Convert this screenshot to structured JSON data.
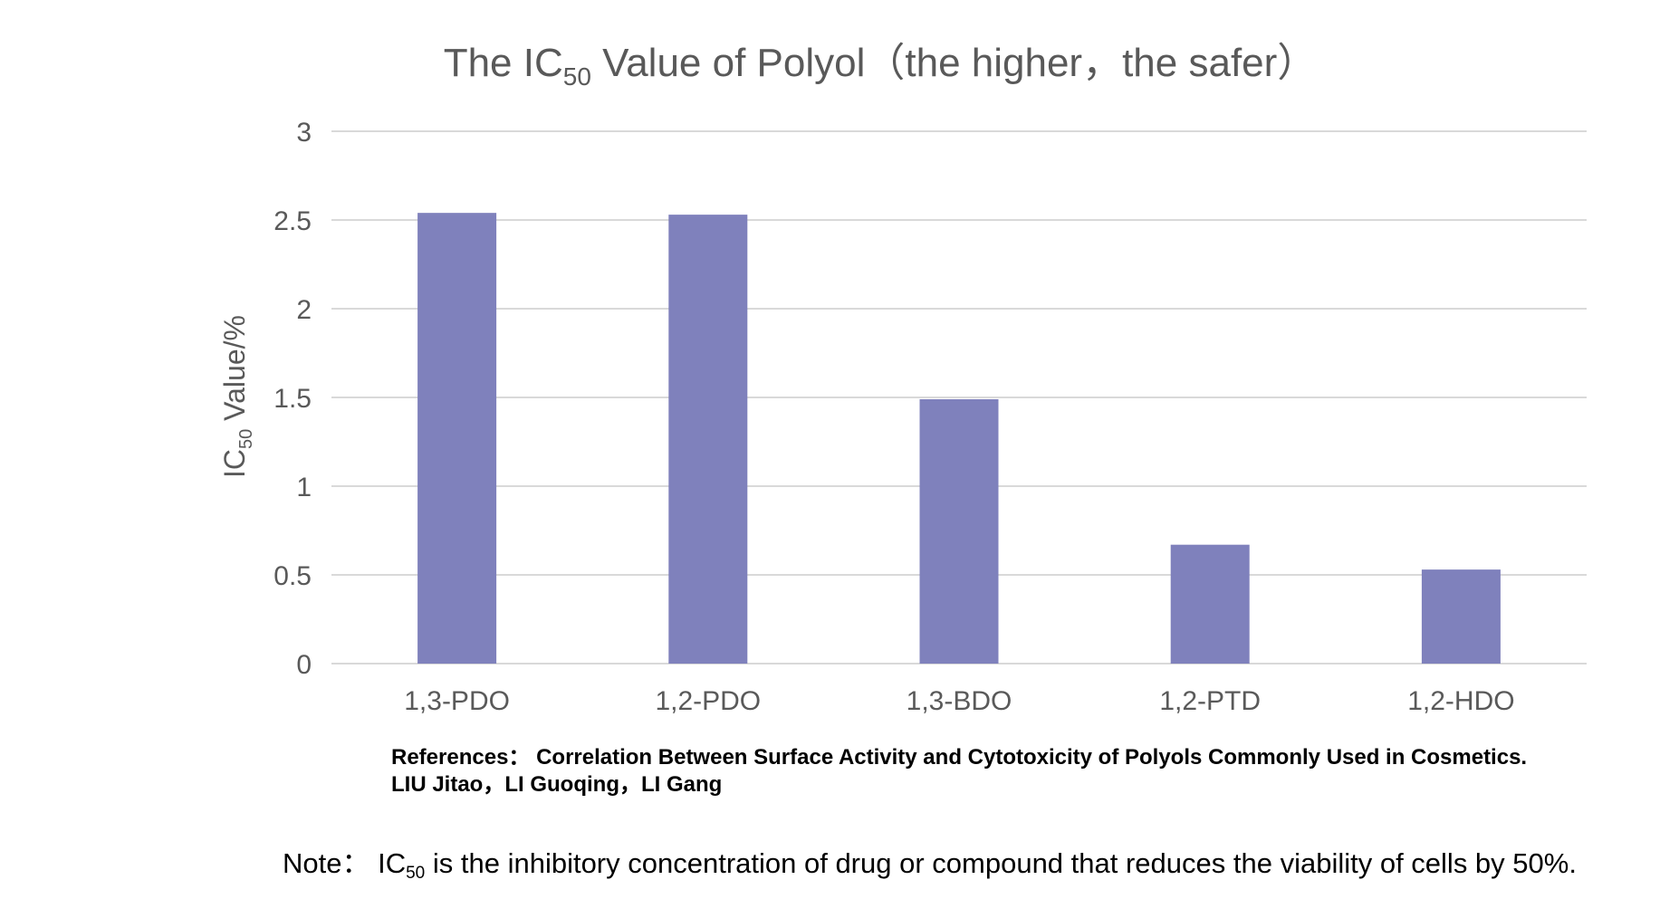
{
  "chart_data": {
    "type": "bar",
    "title_prefix": "The IC",
    "title_subscript": "50",
    "title_suffix": " Value of Polyol（the higher，the safer）",
    "ylabel_prefix": "IC",
    "ylabel_subscript": "50",
    "ylabel_suffix": " Value/%",
    "categories": [
      "1,3-PDO",
      "1,2-PDO",
      "1,3-BDO",
      "1,2-PTD",
      "1,2-HDO"
    ],
    "values": [
      2.54,
      2.53,
      1.49,
      0.67,
      0.53
    ],
    "ylim": [
      0,
      3
    ],
    "yticks": [
      "0",
      "0.5",
      "1",
      "1.5",
      "2",
      "2.5",
      "3"
    ],
    "grid": true,
    "bar_color": "#7f81bc",
    "grid_color": "#d9d9d9"
  },
  "references": {
    "line1": "References：  Correlation Between Surface Activity and Cytotoxicity of Polyols Commonly Used in Cosmetics.",
    "line2": "LIU Jitao，LI Guoqing，LI Gang"
  },
  "note": {
    "prefix": "Note：  IC",
    "subscript": "50",
    "suffix": " is the inhibitory concentration of drug or compound that reduces the viability of cells by 50%."
  }
}
